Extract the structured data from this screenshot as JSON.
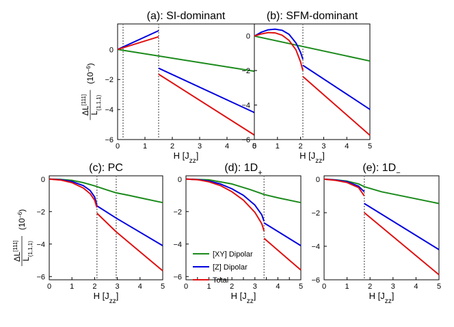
{
  "colors": {
    "xy": "#1a8a1a",
    "z": "#0000e0",
    "total": "#e01010",
    "marker": "#808080"
  },
  "ylabel": {
    "numerator": "ΔL",
    "sup": "[111]",
    "denominator": "L",
    "sub": "(1,1,1)",
    "unit": "(10",
    "unit_exp": "−6",
    "unit_close": ")"
  },
  "legend": [
    "[XY] Dipolar",
    "[Z] Dipolar",
    "Total"
  ],
  "chart_data": [
    {
      "type": "line",
      "title": "(a): SI-dominant",
      "xlabel": "H [J",
      "xlabel_sub": "zz",
      "xlabel_close": "]",
      "xlim": [
        0,
        5
      ],
      "ylim": [
        -6,
        1.7
      ],
      "xticks": [
        "0",
        "1",
        "2",
        "3",
        "4",
        "5"
      ],
      "yticks": [
        "0",
        "−2",
        "−4",
        "−6"
      ],
      "vlines": [
        0.2,
        1.5
      ],
      "series": [
        {
          "key": "xy",
          "segments": [
            [
              [
                0,
                0
              ],
              [
                5,
                -1.45
              ]
            ]
          ]
        },
        {
          "key": "z",
          "segments": [
            [
              [
                0,
                0
              ],
              [
                1.5,
                1.25
              ]
            ],
            [
              [
                1.5,
                -1.25
              ],
              [
                5,
                -4.2
              ]
            ]
          ]
        },
        {
          "key": "total",
          "segments": [
            [
              [
                0,
                0
              ],
              [
                1.5,
                0.85
              ]
            ],
            [
              [
                1.5,
                -1.65
              ],
              [
                5,
                -5.7
              ]
            ]
          ]
        }
      ]
    },
    {
      "type": "line",
      "title": "(b): SFM-dominant",
      "xlabel": "H [J",
      "xlabel_sub": "zz",
      "xlabel_close": "]",
      "xlim": [
        0,
        5
      ],
      "ylim": [
        -6,
        0.7
      ],
      "xticks": [
        "0",
        "1",
        "2",
        "3",
        "4",
        "5"
      ],
      "yticks": [
        "0",
        "−2",
        "−4",
        "−6"
      ],
      "vlines": [
        2.1
      ],
      "series": [
        {
          "key": "xy",
          "segments": [
            [
              [
                0,
                0
              ],
              [
                5,
                -1.45
              ]
            ]
          ]
        },
        {
          "key": "z",
          "segments": [
            [
              [
                0,
                0
              ],
              [
                0.3,
                0.22
              ],
              [
                0.6,
                0.36
              ],
              [
                0.9,
                0.4
              ],
              [
                1.2,
                0.33
              ],
              [
                1.5,
                0.1
              ],
              [
                1.8,
                -0.4
              ],
              [
                2.0,
                -0.95
              ],
              [
                2.1,
                -1.35
              ]
            ],
            [
              [
                2.1,
                -1.7
              ],
              [
                5,
                -4.25
              ]
            ]
          ]
        },
        {
          "key": "total",
          "segments": [
            [
              [
                0,
                0
              ],
              [
                0.3,
                0.12
              ],
              [
                0.6,
                0.2
              ],
              [
                0.9,
                0.18
              ],
              [
                1.2,
                0.05
              ],
              [
                1.5,
                -0.25
              ],
              [
                1.8,
                -0.8
              ],
              [
                2.0,
                -1.5
              ],
              [
                2.1,
                -2.0
              ]
            ],
            [
              [
                2.1,
                -2.35
              ],
              [
                5,
                -5.75
              ]
            ]
          ]
        }
      ]
    },
    {
      "type": "line",
      "title": "(c): PC",
      "xlabel": "H [J",
      "xlabel_sub": "zz",
      "xlabel_close": "]",
      "xlim": [
        0,
        5
      ],
      "ylim": [
        -6.2,
        0.2
      ],
      "xticks": [
        "0",
        "1",
        "2",
        "3",
        "4",
        "5"
      ],
      "yticks": [
        "0",
        "−2",
        "−4",
        "−6"
      ],
      "vlines": [
        2.1,
        2.95
      ],
      "series": [
        {
          "key": "xy",
          "segments": [
            [
              [
                0,
                0
              ],
              [
                0.5,
                -0.02
              ],
              [
                1.0,
                -0.08
              ],
              [
                1.5,
                -0.22
              ],
              [
                2.0,
                -0.42
              ],
              [
                2.5,
                -0.65
              ],
              [
                2.95,
                -0.85
              ],
              [
                3.5,
                -1.0
              ],
              [
                4.0,
                -1.15
              ],
              [
                5,
                -1.45
              ]
            ]
          ]
        },
        {
          "key": "z",
          "segments": [
            [
              [
                0,
                0
              ],
              [
                0.5,
                -0.04
              ],
              [
                1.0,
                -0.15
              ],
              [
                1.5,
                -0.4
              ],
              [
                1.8,
                -0.7
              ],
              [
                2.0,
                -1.1
              ],
              [
                2.1,
                -1.6
              ]
            ],
            [
              [
                2.1,
                -1.65
              ],
              [
                2.95,
                -2.4
              ],
              [
                5,
                -4.1
              ]
            ]
          ]
        },
        {
          "key": "total",
          "segments": [
            [
              [
                0,
                0
              ],
              [
                0.5,
                -0.06
              ],
              [
                1.0,
                -0.22
              ],
              [
                1.5,
                -0.55
              ],
              [
                1.8,
                -0.9
              ],
              [
                2.0,
                -1.3
              ],
              [
                2.1,
                -1.75
              ]
            ],
            [
              [
                2.1,
                -2.1
              ],
              [
                2.95,
                -3.25
              ],
              [
                5,
                -5.65
              ]
            ]
          ]
        }
      ]
    },
    {
      "type": "line",
      "title": "(d): 1D",
      "title_sub": "+",
      "xlabel": "H [J",
      "xlabel_sub": "zz",
      "xlabel_close": "]",
      "xlim": [
        0,
        5
      ],
      "ylim": [
        -6.2,
        0.2
      ],
      "xticks": [
        "0",
        "0.5",
        "1",
        "1.5",
        "2",
        "2.5",
        "3",
        "3.5",
        "4",
        "4.5",
        "5"
      ],
      "yticks": [
        "0",
        "−2",
        "−4",
        "−6"
      ],
      "vlines": [
        3.4
      ],
      "series": [
        {
          "key": "xy",
          "segments": [
            [
              [
                0,
                0
              ],
              [
                1.0,
                -0.05
              ],
              [
                2.0,
                -0.3
              ],
              [
                2.8,
                -0.65
              ],
              [
                3.4,
                -0.95
              ],
              [
                4.0,
                -1.15
              ],
              [
                5,
                -1.45
              ]
            ]
          ]
        },
        {
          "key": "z",
          "segments": [
            [
              [
                0,
                0
              ],
              [
                0.5,
                -0.03
              ],
              [
                1.0,
                -0.12
              ],
              [
                1.5,
                -0.3
              ],
              [
                2.0,
                -0.6
              ],
              [
                2.5,
                -1.0
              ],
              [
                3.0,
                -1.6
              ],
              [
                3.3,
                -2.2
              ],
              [
                3.4,
                -2.6
              ]
            ],
            [
              [
                3.4,
                -2.7
              ],
              [
                5,
                -4.1
              ]
            ]
          ]
        },
        {
          "key": "total",
          "segments": [
            [
              [
                0,
                0
              ],
              [
                0.5,
                -0.04
              ],
              [
                1.0,
                -0.17
              ],
              [
                1.5,
                -0.4
              ],
              [
                2.0,
                -0.78
              ],
              [
                2.5,
                -1.3
              ],
              [
                3.0,
                -2.05
              ],
              [
                3.3,
                -2.75
              ],
              [
                3.4,
                -3.2
              ]
            ],
            [
              [
                3.4,
                -3.65
              ],
              [
                5,
                -5.6
              ]
            ]
          ]
        }
      ]
    },
    {
      "type": "line",
      "title": "(e): 1D",
      "title_sub": "−",
      "xlabel": "H [J",
      "xlabel_sub": "zz",
      "xlabel_close": "]",
      "xlim": [
        0,
        5
      ],
      "ylim": [
        -6,
        0.2
      ],
      "xticks": [
        "0",
        "1",
        "2",
        "3",
        "4",
        "5"
      ],
      "yticks": [
        "0",
        "−2",
        "−4",
        "−6"
      ],
      "vlines": [
        1.75
      ],
      "series": [
        {
          "key": "xy",
          "segments": [
            [
              [
                0,
                0
              ],
              [
                0.5,
                -0.04
              ],
              [
                1.0,
                -0.12
              ],
              [
                1.5,
                -0.28
              ],
              [
                1.75,
                -0.45
              ],
              [
                2.5,
                -0.75
              ],
              [
                5,
                -1.45
              ]
            ]
          ]
        },
        {
          "key": "z",
          "segments": [
            [
              [
                0,
                0
              ],
              [
                0.5,
                -0.05
              ],
              [
                1.0,
                -0.15
              ],
              [
                1.5,
                -0.42
              ],
              [
                1.75,
                -0.75
              ]
            ],
            [
              [
                1.75,
                -1.45
              ],
              [
                5,
                -4.2
              ]
            ]
          ]
        },
        {
          "key": "total",
          "segments": [
            [
              [
                0,
                0
              ],
              [
                0.5,
                -0.07
              ],
              [
                1.0,
                -0.2
              ],
              [
                1.5,
                -0.5
              ],
              [
                1.75,
                -1.0
              ]
            ],
            [
              [
                1.75,
                -2.0
              ],
              [
                5,
                -5.7
              ]
            ]
          ]
        }
      ]
    }
  ]
}
